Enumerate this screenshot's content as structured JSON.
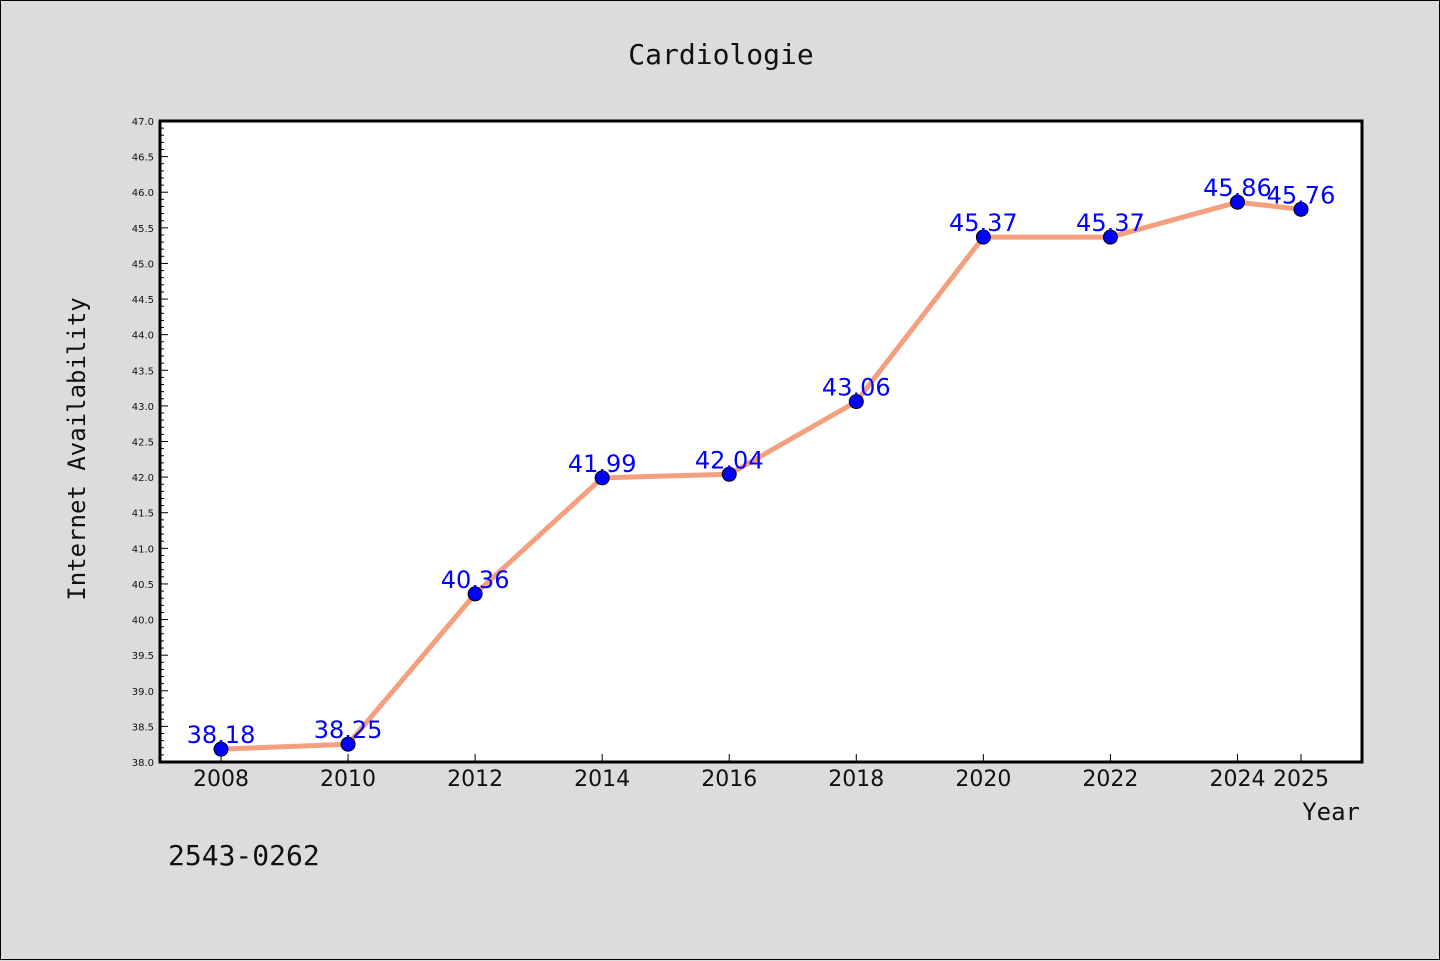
{
  "chart_data": {
    "type": "line",
    "title": "Cardiologie",
    "xlabel": "Year",
    "ylabel": "Internet Availability",
    "x": [
      "2008",
      "2010",
      "2012",
      "2014",
      "2016",
      "2018",
      "2020",
      "2022",
      "2024",
      "2025"
    ],
    "series": [
      {
        "values": [
          38.18,
          38.25,
          40.36,
          41.99,
          42.04,
          43.06,
          45.37,
          45.37,
          45.86,
          45.76
        ],
        "line_color": "#f4a07e",
        "marker_color": "#0000ff"
      }
    ],
    "data_labels": [
      "38.18",
      "38.25",
      "40.36",
      "41.99",
      "42.04",
      "43.06",
      "45.37",
      "45.37",
      "45.86",
      "45.76"
    ],
    "ylim": [
      38.0,
      47.0
    ],
    "yticks": [
      "38.0",
      "38.5",
      "39.0",
      "39.5",
      "40.0",
      "40.5",
      "41.0",
      "41.5",
      "42.0",
      "42.5",
      "43.0",
      "43.5",
      "44.0",
      "44.5",
      "45.0",
      "45.5",
      "46.0",
      "46.5",
      "47.0"
    ],
    "grid": false,
    "footnote": "2543-0262",
    "background_color": "#dcdcdc",
    "plot_background_color": "#ffffff"
  }
}
